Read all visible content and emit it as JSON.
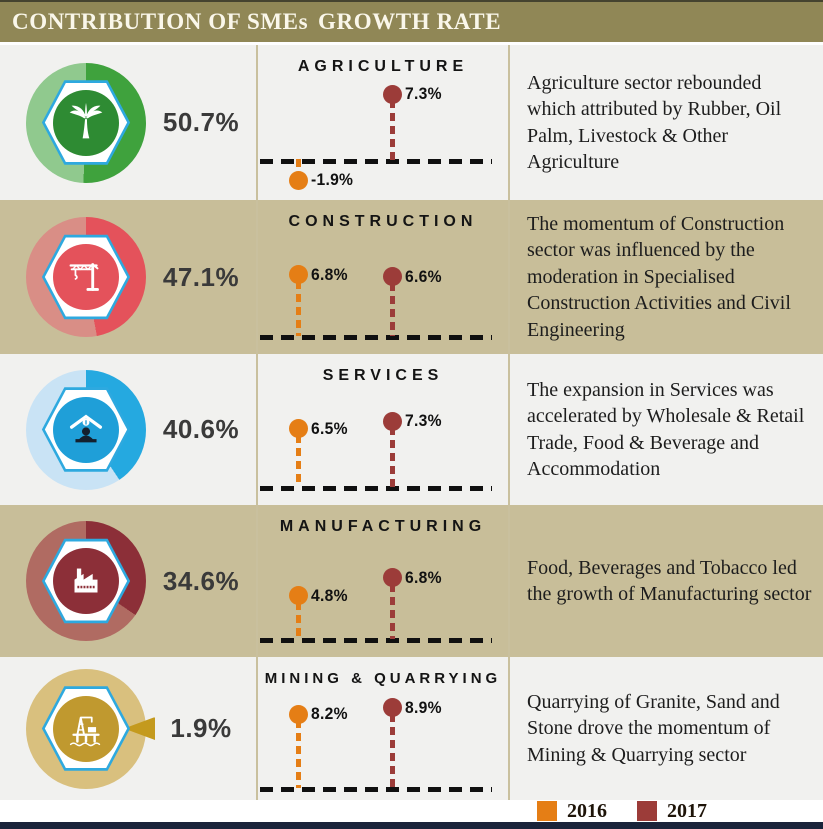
{
  "header": {
    "left": "CONTRIBUTION OF SMEs",
    "right": "GROWTH RATE",
    "bg": "#908756"
  },
  "colors": {
    "year2016": "#E57E15",
    "year2017": "#9C3C39",
    "row_khaki": "#C8BE99",
    "row_light": "#F1F1EF",
    "header_bg": "#908756",
    "hex_border_blue": "#2EA9DF",
    "baseline_black": "#101010",
    "footer_bar_navy": "#19233A"
  },
  "legend": {
    "items": [
      {
        "label": "2016",
        "color": "#E57E15"
      },
      {
        "label": "2017",
        "color": "#9C3C39"
      }
    ]
  },
  "sectors": [
    {
      "name": "AGRICULTURE",
      "contribution": "50.7%",
      "contribution_value": 50.7,
      "icon": "palm-tree-icon",
      "icon_bg": "#2E8B33",
      "donut": {
        "value": 50.7,
        "dark": "#3FA23D",
        "light": "#90C98E"
      },
      "markers": [
        {
          "year": "2016",
          "value": -1.9,
          "label": "-1.9%"
        },
        {
          "year": "2017",
          "value": 7.3,
          "label": "7.3%"
        }
      ],
      "description": "Agriculture sector rebounded which attributed by Rubber, Oil Palm, Livestock & Other Agriculture"
    },
    {
      "name": "CONSTRUCTION",
      "contribution": "47.1%",
      "contribution_value": 47.1,
      "icon": "construction-crane-icon",
      "icon_bg": "#E4525B",
      "donut": {
        "value": 47.1,
        "dark": "#E4525B",
        "light": "#D98E86"
      },
      "markers": [
        {
          "year": "2016",
          "value": 6.8,
          "label": "6.8%"
        },
        {
          "year": "2017",
          "value": 6.6,
          "label": "6.6%"
        }
      ],
      "description": "The momentum of Construction sector was influenced by the moderation in Specialised Construction Activities and Civil Engineering"
    },
    {
      "name": "SERVICES",
      "contribution": "40.6%",
      "contribution_value": 40.6,
      "icon": "shop-person-icon",
      "icon_bg": "#1F9FD8",
      "donut": {
        "value": 40.6,
        "dark": "#25A9E0",
        "light": "#C9E3F5"
      },
      "markers": [
        {
          "year": "2016",
          "value": 6.5,
          "label": "6.5%"
        },
        {
          "year": "2017",
          "value": 7.3,
          "label": "7.3%"
        }
      ],
      "description": "The expansion in Services was accelerated by Wholesale & Retail Trade, Food & Beverage and Accommodation"
    },
    {
      "name": "MANUFACTURING",
      "contribution": "34.6%",
      "contribution_value": 34.6,
      "icon": "factory-icon",
      "icon_bg": "#8C2F38",
      "donut": {
        "value": 34.6,
        "dark": "#8C2F38",
        "light": "#B06B62"
      },
      "markers": [
        {
          "year": "2016",
          "value": 4.8,
          "label": "4.8%"
        },
        {
          "year": "2017",
          "value": 6.8,
          "label": "6.8%"
        }
      ],
      "description": "Food, Beverages and Tobacco led the growth of Manufacturing sector"
    },
    {
      "name": "MINING & QUARRYING",
      "contribution": "1.9%",
      "contribution_value": 1.9,
      "icon": "oil-rig-icon",
      "icon_bg": "#C0992F",
      "donut": {
        "value": 1.9,
        "dark": "#C49A1E",
        "light": "#D9C07E",
        "exploded": true
      },
      "markers": [
        {
          "year": "2016",
          "value": 8.2,
          "label": "8.2%"
        },
        {
          "year": "2017",
          "value": 8.9,
          "label": "8.9%"
        }
      ],
      "description": "Quarrying of Granite, Sand and Stone drove the momentum of Mining & Quarrying sector"
    }
  ],
  "chart_data": [
    {
      "type": "pie",
      "title": "Contribution of SMEs",
      "unit": "%",
      "categories": [
        "Agriculture",
        "Construction",
        "Services",
        "Manufacturing",
        "Mining & Quarrying"
      ],
      "values": [
        50.7,
        47.1,
        40.6,
        34.6,
        1.9
      ],
      "note": "each value rendered as an independent donut share"
    },
    {
      "type": "bar",
      "title": "Growth Rate",
      "unit": "%",
      "categories": [
        "Agriculture",
        "Construction",
        "Services",
        "Manufacturing",
        "Mining & Quarrying"
      ],
      "series": [
        {
          "name": "2016",
          "values": [
            -1.9,
            6.8,
            6.5,
            4.8,
            8.2
          ]
        },
        {
          "name": "2017",
          "values": [
            7.3,
            6.6,
            7.3,
            6.8,
            8.9
          ]
        }
      ],
      "baseline": 0,
      "legend_position": "bottom-right"
    }
  ]
}
